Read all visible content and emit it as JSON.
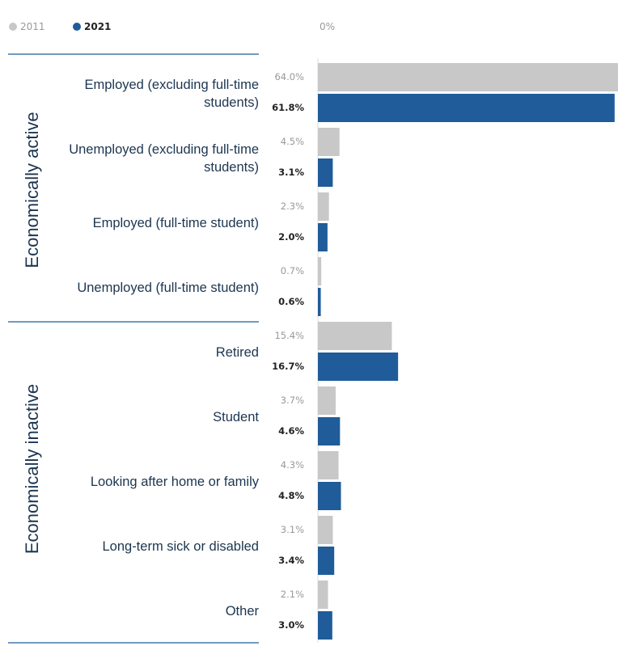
{
  "chart_data": {
    "type": "bar",
    "orientation": "horizontal",
    "groups": [
      "Economically active",
      "Economically inactive"
    ],
    "categories": [
      "Employed (excluding full-time students)",
      "Unemployed (excluding full-time students)",
      "Employed (full-time student)",
      "Unemployed (full-time student)",
      "Retired",
      "Student",
      "Looking after home or family",
      "Long-term sick or disabled",
      "Other"
    ],
    "series": [
      {
        "name": "2011",
        "color": "#c8c8c8",
        "values": [
          64.0,
          4.5,
          2.3,
          0.7,
          15.4,
          3.7,
          4.3,
          3.1,
          2.1
        ],
        "value_labels": [
          "64.0%",
          "4.5%",
          "2.3%",
          "0.7%",
          "15.4%",
          "3.7%",
          "4.3%",
          "3.1%",
          "2.1%"
        ]
      },
      {
        "name": "2021",
        "color": "#1f5c99",
        "values": [
          61.8,
          3.1,
          2.0,
          0.6,
          16.7,
          4.6,
          4.8,
          3.4,
          3.0
        ],
        "value_labels": [
          "61.8%",
          "3.1%",
          "2.0%",
          "0.6%",
          "16.7%",
          "4.6%",
          "4.8%",
          "3.4%",
          "3.0%"
        ]
      }
    ],
    "xlim": [
      0,
      62
    ],
    "xticks": [
      {
        "value": 0,
        "label": "0%"
      }
    ]
  }
}
